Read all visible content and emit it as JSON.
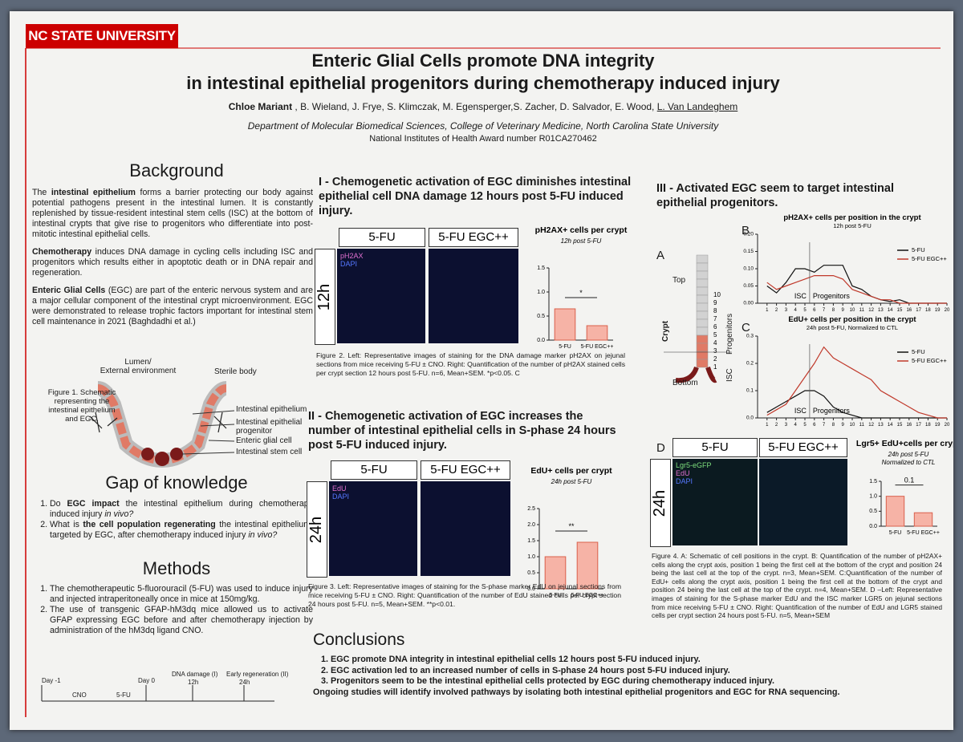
{
  "header": {
    "logo": "NC STATE UNIVERSITY",
    "title": [
      "Enteric Glial Cells promote DNA integrity",
      "in intestinal epithelial progenitors during chemotherapy induced injury"
    ],
    "authors": [
      {
        "text": "Chloe Mariant",
        "bold": true
      },
      {
        "text": " , B. Wieland, J. Frye, S. Klimczak, M. Egensperger,S. Zacher, D. Salvador, E. Wood, "
      },
      {
        "text": "L. Van Landeghem",
        "underline": true
      }
    ],
    "affiliation": "Department of Molecular Biomedical Sciences, College of Veterinary Medicine, North Carolina State University",
    "grant": "National Institutes of Health  Award number R01CA270462"
  },
  "background": {
    "heading": "Background",
    "paragraphs": [
      [
        {
          "text": "The "
        },
        {
          "text": "intestinal epithelium",
          "bold": true
        },
        {
          "text": " forms a barrier protecting our body against potential pathogens present in the intestinal lumen. It is constantly replenished by tissue-resident intestinal stem cells (ISC) at the bottom of intestinal crypts that give rise to progenitors who differentiate into post-mitotic intestinal epithelial cells."
        }
      ],
      [
        {
          "text": "Chemotherapy",
          "bold": true
        },
        {
          "text": " induces DNA damage in cycling cells including ISC and progenitors which results either in apoptotic death or in DNA repair and regeneration."
        }
      ],
      [
        {
          "text": "Enteric Glial Cells",
          "bold": true
        },
        {
          "text": " (EGC) are part of the enteric nervous system and are a major cellular component of the intestinal crypt microenvironment. EGC were demonstrated to release trophic factors important for intestinal stem cell maintenance in 2021 (Baghdadhi et al.)"
        }
      ]
    ]
  },
  "figure1": {
    "caption": "Figure 1. Schematic representing the intestinal epithelium and EGC.",
    "lumen": [
      "Lumen/",
      "External environment"
    ],
    "sterile": "Sterile body",
    "labels": [
      "Intestinal epithelium",
      "Intestinal epithelial progenitor",
      "Enteric glial cell",
      "Intestinal stem cell"
    ]
  },
  "gap": {
    "heading": "Gap of knowledge",
    "items": [
      [
        {
          "text": "Do "
        },
        {
          "text": "EGC impact",
          "bold": true
        },
        {
          "text": " the intestinal epithelium during chemotherapy induced injury "
        },
        {
          "text": "in vivo?",
          "italic": true
        }
      ],
      [
        {
          "text": "What is "
        },
        {
          "text": "the cell population regenerating",
          "bold": true
        },
        {
          "text": " the intestinal epithelium, targeted by EGC, after chemotherapy induced injury "
        },
        {
          "text": "in vivo?",
          "italic": true
        }
      ]
    ]
  },
  "methods": {
    "heading": "Methods",
    "items": [
      [
        {
          "text": "The chemotherapeutic 5-fluorouracil (5-FU) was used to induce injury and injected intraperitoneally once in mice at 150mg/kg."
        }
      ],
      [
        {
          "text": "The use of transgenic GFAP-hM3dq mice allowed us to activate GFAP expressing EGC before and after chemotherapy injection by administration of the hM3dq ligand CNO."
        }
      ]
    ]
  },
  "timeline": {
    "day_minus1": "Day -1",
    "cno": "CNO",
    "fu": "5-FU",
    "day0": "Day 0",
    "damage": "DNA damage (I)",
    "h12": "12h",
    "regen": "Early regeneration (II)",
    "h24": "24h"
  },
  "section1": {
    "heading": "I - Chemogenetic activation of EGC diminishes intestinal epithelial cell DNA damage 12 hours post 5-FU induced injury.",
    "columns": [
      "5-FU",
      "5-FU  EGC++"
    ],
    "row": "12h",
    "stains": [
      "pH2AX",
      "DAPI"
    ],
    "chart": {
      "title": "pH2AX+ cells per crypt",
      "subtitle": "12h post 5-FU",
      "categories": [
        "5-FU",
        "5-FU EGC++"
      ],
      "values": [
        0.65,
        0.3
      ],
      "ylim": [
        0,
        1.5
      ],
      "yticks": [
        {
          "value": 0,
          "label": "0.0"
        },
        {
          "value": 0.5,
          "label": "0.5"
        },
        {
          "value": 1,
          "label": "1.0"
        },
        {
          "value": 1.5,
          "label": "1.5"
        }
      ],
      "significance": "*",
      "color": "#f6b3a6"
    },
    "caption": "Figure 2. Left: Representative images of staining for the DNA damage marker pH2AX on jejunal sections from mice receiving 5-FU ± CNO. Right: Quantification of the number of pH2AX stained cells per crypt section 12 hours post 5-FU. n=6, Mean+SEM. *p<0.05. C"
  },
  "section2": {
    "heading": "II - Chemogenetic activation of EGC increases the number of intestinal epithelial cells in S-phase 24 hours post 5-FU induced injury.",
    "columns": [
      "5-FU",
      "5-FU  EGC++"
    ],
    "row": "24h",
    "stains": [
      "EdU",
      "DAPI"
    ],
    "chart": {
      "title": "EdU+ cells per crypt",
      "subtitle": "24h post 5-FU",
      "categories": [
        "5-FU",
        "5-FU EGC++"
      ],
      "values": [
        1.0,
        1.45
      ],
      "ylim": [
        0,
        2.5
      ],
      "yticks": [
        {
          "value": 0,
          "label": "0.0"
        },
        {
          "value": 0.5,
          "label": "0.5"
        },
        {
          "value": 1,
          "label": "1.0"
        },
        {
          "value": 1.5,
          "label": "1.5"
        },
        {
          "value": 2,
          "label": "2.0"
        },
        {
          "value": 2.5,
          "label": "2.5"
        }
      ],
      "significance": "**",
      "color": "#f6b3a6"
    },
    "caption": "Figure 3. Left: Representative images of staining for the S-phase marker EdU on jejunal sections from mice receiving 5-FU ± CNO. Right: Quantification of the number of EdU stained cells per crypt section 24 hours post 5-FU. n=5, Mean+SEM. **p<0.01."
  },
  "section3": {
    "heading": "III - Activated EGC seem to target intestinal epithelial progenitors.",
    "panelA": {
      "letter": "A",
      "top": "Top",
      "crypt": "Crypt",
      "bottom": "Bottom",
      "isc": "ISC",
      "progenitors": "Progenitors",
      "positions": [
        1,
        2,
        3,
        4,
        5,
        6,
        7,
        8,
        9,
        10
      ]
    },
    "panelB": {
      "letter": "B",
      "title": "pH2AX+ cells per position in the crypt",
      "subtitle": "12h post 5-FU",
      "x": [
        1,
        2,
        3,
        4,
        5,
        6,
        7,
        8,
        9,
        10,
        11,
        12,
        13,
        14,
        15,
        16,
        17,
        18,
        19,
        20
      ],
      "xlim": [
        0,
        20
      ],
      "xticks": [
        1,
        2,
        3,
        4,
        5,
        6,
        7,
        8,
        9,
        10,
        11,
        12,
        13,
        14,
        15,
        16,
        17,
        18,
        19,
        20
      ],
      "ylim": [
        0,
        0.2
      ],
      "yticks": [
        {
          "value": 0,
          "label": "0.00"
        },
        {
          "value": 0.05,
          "label": "0.05"
        },
        {
          "value": 0.1,
          "label": "0.10"
        },
        {
          "value": 0.15,
          "label": "0.15"
        },
        {
          "value": 0.2,
          "label": "0.20"
        }
      ],
      "series": [
        {
          "name": "5-FU",
          "color": "#111111",
          "values": [
            0.05,
            0.03,
            0.06,
            0.1,
            0.1,
            0.09,
            0.11,
            0.11,
            0.11,
            0.05,
            0.04,
            0.02,
            0.01,
            0.005,
            0.01,
            0,
            0,
            0,
            0,
            0
          ]
        },
        {
          "name": "5-FU EGC++",
          "color": "#c0392b",
          "values": [
            0.06,
            0.04,
            0.05,
            0.06,
            0.07,
            0.08,
            0.08,
            0.08,
            0.07,
            0.04,
            0.03,
            0.02,
            0.01,
            0.01,
            0,
            0,
            0,
            0,
            0,
            0
          ]
        }
      ],
      "isc": "ISC",
      "progenitors": "Progenitors"
    },
    "panelC": {
      "letter": "C",
      "title": "EdU+ cells per position in the crypt",
      "subtitle": "24h post 5-FU, Normalized to CTL",
      "x": [
        1,
        2,
        3,
        4,
        5,
        6,
        7,
        8,
        9,
        10,
        11,
        12,
        13,
        14,
        15,
        16,
        17,
        18,
        19,
        20
      ],
      "xlim": [
        0,
        20
      ],
      "xticks": [
        1,
        2,
        3,
        4,
        5,
        6,
        7,
        8,
        9,
        10,
        11,
        12,
        13,
        14,
        15,
        16,
        17,
        18,
        19,
        20
      ],
      "ylim": [
        0,
        0.3
      ],
      "yticks": [
        {
          "value": 0,
          "label": "0.0"
        },
        {
          "value": 0.1,
          "label": "0.1"
        },
        {
          "value": 0.2,
          "label": "0.2"
        },
        {
          "value": 0.3,
          "label": "0.3"
        }
      ],
      "series": [
        {
          "name": "5-FU",
          "color": "#111111",
          "values": [
            0.02,
            0.04,
            0.06,
            0.08,
            0.1,
            0.1,
            0.08,
            0.04,
            0.02,
            0.01,
            0,
            0,
            0,
            0,
            0,
            0,
            0,
            0,
            0,
            0
          ]
        },
        {
          "name": "5-FU EGC++",
          "color": "#c0392b",
          "values": [
            0.01,
            0.03,
            0.05,
            0.1,
            0.15,
            0.2,
            0.26,
            0.22,
            0.2,
            0.18,
            0.16,
            0.14,
            0.1,
            0.08,
            0.06,
            0.04,
            0.02,
            0.01,
            0,
            0
          ]
        }
      ],
      "isc": "ISC",
      "progenitors": "Progenitors"
    },
    "panelD": {
      "letter": "D",
      "columns": [
        "5-FU",
        "5-FU  EGC++"
      ],
      "row": "24h",
      "stains": [
        "Lgr5-eGFP",
        "EdU",
        "DAPI"
      ],
      "chart": {
        "title": "Lgr5+ EdU+cells per crypt",
        "subtitle": [
          "24h post 5-FU",
          "Normalized to CTL"
        ],
        "categories": [
          "5-FU",
          "5-FU EGC++"
        ],
        "values": [
          1.0,
          0.45
        ],
        "ylim": [
          0,
          1.5
        ],
        "yticks": [
          {
            "value": 0,
            "label": "0.0"
          },
          {
            "value": 0.5,
            "label": "0.5"
          },
          {
            "value": 1,
            "label": "1.0"
          },
          {
            "value": 1.5,
            "label": "1.5"
          }
        ],
        "significance": "0.1",
        "color": "#f6b3a6"
      }
    },
    "caption": "Figure 4. A: Schematic of cell positions in the crypt. B: Quantification of the number of pH2AX+ cells along the crypt axis, position 1 being the first cell at the bottom of the crypt and position 24 being the last cell at the top of the crypt. n=3, Mean+SEM. C:Quantification of the number of EdU+ cells along the crypt axis, position 1 being the first cell at the bottom of the crypt and position 24 being the last cell at the top of the crypt. n=4, Mean+SEM. D –Left: Representative images of staining for the S-phase marker EdU and the ISC marker LGR5 on jejunal sections from mice receiving 5-FU ± CNO. Right: Quantification of the number of EdU and LGR5 stained cells per crypt section 24 hours post 5-FU. n=5, Mean+SEM"
  },
  "conclusions": {
    "heading": "Conclusions",
    "items": [
      "EGC promote DNA integrity in intestinal epithelial cells 12 hours post 5-FU induced injury.",
      "EGC activation led to an increased number of cells in S-phase 24 hours post 5-FU induced injury.",
      "Progenitors seem to be the intestinal epithelial cells protected by EGC during chemotherapy induced injury."
    ],
    "outlook": "Ongoing studies will identify involved pathways by isolating both intestinal epithelial progenitors and EGC for RNA sequencing."
  }
}
